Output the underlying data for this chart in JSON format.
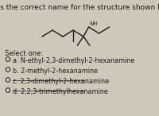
{
  "title": "What is the correct name for the structure shown below?",
  "title_fontsize": 6.5,
  "select_label": "Select one:",
  "options": [
    "a. N-ethyl-2,3-dimethyl-2-hexanamine",
    "b. 2-methyl-2-hexanamine",
    "c. 2,3-dimethyl-2-hexanamine",
    "d. 2,2,3-trimethylhexanamine"
  ],
  "option_fontsize": 5.8,
  "select_fontsize": 6.2,
  "bg_color": "#cfc8b8",
  "text_color": "#1a1a1a",
  "circle_color": "#1a1a1a",
  "strikethrough": [
    false,
    false,
    true,
    true
  ],
  "nh_text": "NH"
}
